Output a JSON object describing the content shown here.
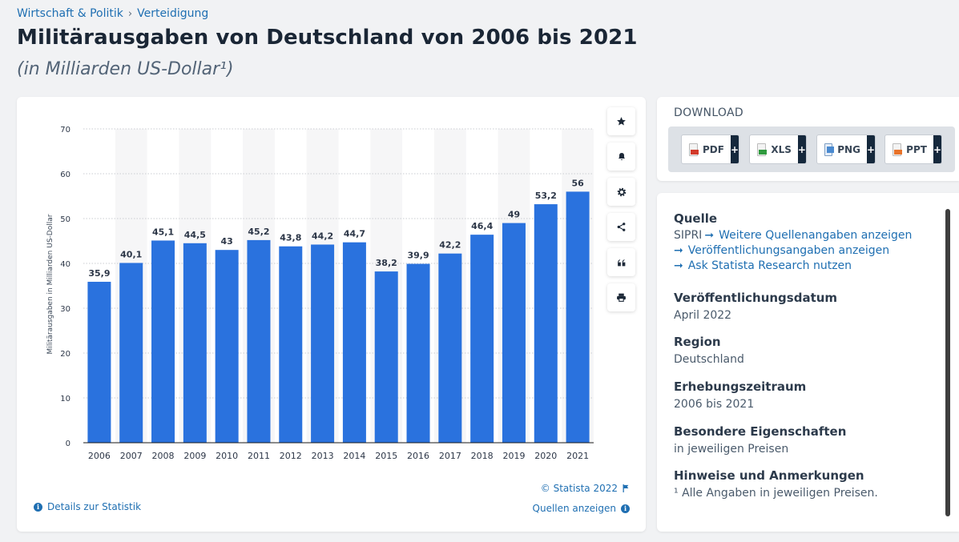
{
  "breadcrumb": {
    "item1": "Wirtschaft & Politik",
    "separator": "›",
    "item2": "Verteidigung"
  },
  "page": {
    "title": "Militärausgaben von Deutschland von 2006 bis 2021",
    "subtitle": "(in Milliarden US-Dollar¹)"
  },
  "chart_data": {
    "type": "bar",
    "categories": [
      "2006",
      "2007",
      "2008",
      "2009",
      "2010",
      "2011",
      "2012",
      "2013",
      "2014",
      "2015",
      "2016",
      "2017",
      "2018",
      "2019",
      "2020",
      "2021"
    ],
    "values": [
      35.9,
      40.1,
      45.1,
      44.5,
      43,
      45.2,
      43.8,
      44.2,
      44.7,
      38.2,
      39.9,
      42.2,
      46.4,
      49,
      53.2,
      56
    ],
    "value_labels": [
      "35,9",
      "40,1",
      "45,1",
      "44,5",
      "43",
      "45,2",
      "43,8",
      "44,2",
      "44,7",
      "38,2",
      "39,9",
      "42,2",
      "46,4",
      "49",
      "53,2",
      "56"
    ],
    "ylabel": "Militärausgaben in Milliarden US-Dollar",
    "yticks": [
      "0",
      "10",
      "20",
      "30",
      "40",
      "50",
      "60",
      "70"
    ],
    "ylim": [
      0,
      70
    ],
    "bar_color": "#2a72de",
    "grid": true
  },
  "chart_footer": {
    "copyright": "© Statista 2022",
    "details_link": "Details zur Statistik",
    "sources_link": "Quellen anzeigen"
  },
  "download": {
    "title": "DOWNLOAD",
    "buttons": [
      {
        "label": "PDF",
        "plus": "+"
      },
      {
        "label": "XLS",
        "plus": "+"
      },
      {
        "label": "PNG",
        "plus": "+"
      },
      {
        "label": "PPT",
        "plus": "+"
      }
    ]
  },
  "info": {
    "source_heading": "Quelle",
    "source_name": "SIPRI",
    "source_link_more": "Weitere Quellenangaben anzeigen",
    "source_link_pub": "Veröffentlichungsangaben anzeigen",
    "source_link_research": "Ask Statista Research nutzen",
    "pubdate_heading": "Veröffentlichungsdatum",
    "pubdate_value": "April 2022",
    "region_heading": "Region",
    "region_value": "Deutschland",
    "period_heading": "Erhebungszeitraum",
    "period_value": "2006 bis 2021",
    "special_heading": "Besondere Eigenschaften",
    "special_value": "in jeweiligen Preisen",
    "notes_heading": "Hinweise und Anmerkungen",
    "notes_value": "¹ Alle Angaben in jeweiligen Preisen."
  },
  "icons": {
    "tools": [
      "star-icon",
      "bell-icon",
      "gear-icon",
      "share-icon",
      "quote-icon",
      "print-icon"
    ]
  }
}
